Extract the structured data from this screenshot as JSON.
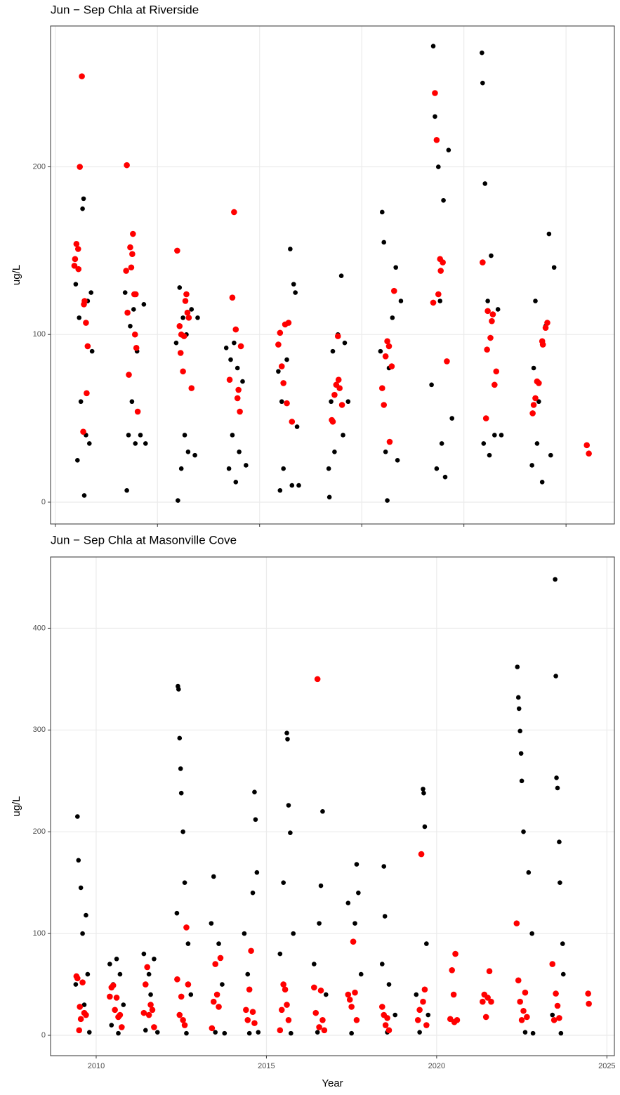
{
  "chart_data": [
    {
      "type": "scatter",
      "title": "Jun − Sep Chla at Riverside",
      "ylabel": "ug/L",
      "grid": true,
      "xlim": [
        2008.66,
        2025.22
      ],
      "ylim": [
        -13,
        284
      ],
      "xticks": [
        2008.8,
        2011.8,
        2014.8,
        2017.8,
        2020.8,
        2023.8
      ],
      "yticks": [
        0,
        100,
        200
      ],
      "series": [
        {
          "color": "#000000",
          "x": [
            2009.4,
            2009.45,
            2009.5,
            2009.55,
            2009.6,
            2009.63,
            2009.65,
            2009.7,
            2009.75,
            2009.8,
            2009.85,
            2009.88,
            2010.85,
            2010.9,
            2010.95,
            2011.0,
            2011.05,
            2011.1,
            2011.15,
            2011.2,
            2011.3,
            2011.4,
            2011.45,
            2012.35,
            2012.4,
            2012.45,
            2012.5,
            2012.55,
            2012.6,
            2012.65,
            2012.7,
            2012.8,
            2012.9,
            2012.98,
            2013.82,
            2013.9,
            2013.95,
            2014.0,
            2014.05,
            2014.1,
            2014.15,
            2014.2,
            2014.3,
            2014.4,
            2015.35,
            2015.4,
            2015.45,
            2015.5,
            2015.6,
            2015.7,
            2015.75,
            2015.8,
            2015.85,
            2015.9,
            2015.95,
            2016.83,
            2016.85,
            2016.9,
            2016.95,
            2017.0,
            2017.1,
            2017.2,
            2017.25,
            2017.3,
            2017.4,
            2018.35,
            2018.4,
            2018.45,
            2018.5,
            2018.55,
            2018.6,
            2018.7,
            2018.8,
            2018.85,
            2018.95,
            2019.85,
            2019.9,
            2019.95,
            2020.0,
            2020.05,
            2020.1,
            2020.15,
            2020.2,
            2020.25,
            2020.35,
            2020.45,
            2021.33,
            2021.35,
            2021.38,
            2021.42,
            2021.5,
            2021.55,
            2021.6,
            2021.7,
            2021.8,
            2021.9,
            2022.8,
            2022.85,
            2022.9,
            2022.95,
            2023.0,
            2023.1,
            2023.2,
            2023.3,
            2023.35,
            2023.45
          ],
          "values": [
            130,
            25,
            110,
            60,
            175,
            181,
            4,
            40,
            120,
            35,
            125,
            90,
            125,
            7,
            40,
            105,
            60,
            115,
            35,
            90,
            40,
            118,
            35,
            95,
            1,
            128,
            20,
            110,
            40,
            100,
            30,
            115,
            28,
            110,
            92,
            20,
            85,
            40,
            95,
            12,
            80,
            30,
            72,
            22,
            78,
            7,
            60,
            20,
            85,
            151,
            10,
            130,
            125,
            45,
            10,
            20,
            3,
            60,
            90,
            30,
            100,
            135,
            40,
            95,
            60,
            90,
            173,
            155,
            30,
            1,
            80,
            110,
            140,
            25,
            120,
            70,
            272,
            230,
            20,
            200,
            120,
            35,
            180,
            15,
            210,
            50,
            268,
            250,
            35,
            190,
            120,
            28,
            147,
            40,
            115,
            40,
            22,
            80,
            120,
            35,
            60,
            12,
            105,
            160,
            28,
            140
          ]
        },
        {
          "color": "#ff0000",
          "x": [
            2009.36,
            2009.38,
            2009.42,
            2009.47,
            2009.48,
            2009.52,
            2009.58,
            2009.62,
            2009.64,
            2009.66,
            2009.7,
            2009.72,
            2009.75,
            2010.88,
            2010.9,
            2010.92,
            2010.96,
            2011.0,
            2011.03,
            2011.06,
            2011.08,
            2011.12,
            2011.14,
            2011.16,
            2011.18,
            2011.22,
            2012.38,
            2012.45,
            2012.48,
            2012.5,
            2012.55,
            2012.58,
            2012.62,
            2012.65,
            2012.68,
            2012.72,
            2012.8,
            2013.92,
            2014.0,
            2014.05,
            2014.1,
            2014.15,
            2014.18,
            2014.22,
            2014.25,
            2015.35,
            2015.4,
            2015.45,
            2015.5,
            2015.55,
            2015.65,
            2015.6,
            2015.75,
            2016.92,
            2016.95,
            2017.0,
            2017.05,
            2017.1,
            2017.12,
            2017.15,
            2017.22,
            2018.4,
            2018.45,
            2018.5,
            2018.55,
            2018.6,
            2018.62,
            2018.68,
            2018.75,
            2019.9,
            2019.95,
            2020.0,
            2020.05,
            2020.1,
            2020.12,
            2020.18,
            2020.3,
            2021.35,
            2021.45,
            2021.48,
            2021.5,
            2021.58,
            2021.62,
            2021.65,
            2021.7,
            2021.75,
            2022.82,
            2022.85,
            2022.9,
            2022.95,
            2023.0,
            2023.1,
            2023.12,
            2023.2,
            2023.25,
            2024.41,
            2024.47
          ],
          "values": [
            141,
            145,
            154,
            151,
            139,
            200,
            254,
            42,
            118,
            120,
            107,
            65,
            93,
            138,
            201,
            113,
            76,
            152,
            140,
            148,
            160,
            124,
            100,
            124,
            92,
            54,
            150,
            105,
            89,
            100,
            78,
            99,
            120,
            124,
            113,
            110,
            68,
            73,
            122,
            173,
            103,
            62,
            67,
            54,
            93,
            94,
            101,
            81,
            71,
            106,
            107,
            59,
            48,
            49,
            48,
            64,
            70,
            99,
            73,
            68,
            58,
            68,
            58,
            87,
            96,
            93,
            36,
            81,
            126,
            119,
            244,
            216,
            124,
            145,
            138,
            143,
            84,
            143,
            50,
            91,
            114,
            98,
            108,
            112,
            70,
            78,
            53,
            58,
            62,
            72,
            71,
            96,
            94,
            104,
            107,
            34,
            29
          ]
        }
      ]
    },
    {
      "type": "scatter",
      "title": "Jun − Sep Chla at Masonville Cove",
      "xlabel": "Year",
      "ylabel": "ug/L",
      "grid": true,
      "xlim": [
        2008.66,
        2025.22
      ],
      "ylim": [
        -20,
        470
      ],
      "xticks": [
        2010,
        2015,
        2020,
        2025
      ],
      "yticks": [
        0,
        100,
        200,
        300,
        400
      ],
      "series": [
        {
          "color": "#000000",
          "x": [
            2009.4,
            2009.45,
            2009.48,
            2009.5,
            2009.55,
            2009.6,
            2009.65,
            2009.7,
            2009.75,
            2009.8,
            2010.4,
            2010.45,
            2010.5,
            2010.6,
            2010.65,
            2010.7,
            2010.8,
            2011.4,
            2011.45,
            2011.55,
            2011.6,
            2011.7,
            2011.8,
            2012.37,
            2012.4,
            2012.42,
            2012.45,
            2012.48,
            2012.5,
            2012.55,
            2012.6,
            2012.65,
            2012.7,
            2012.78,
            2013.38,
            2013.45,
            2013.5,
            2013.6,
            2013.7,
            2013.77,
            2014.35,
            2014.45,
            2014.5,
            2014.6,
            2014.65,
            2014.68,
            2014.72,
            2014.76,
            2015.4,
            2015.5,
            2015.6,
            2015.62,
            2015.65,
            2015.7,
            2015.72,
            2015.79,
            2016.4,
            2016.5,
            2016.55,
            2016.6,
            2016.65,
            2016.75,
            2017.4,
            2017.5,
            2017.6,
            2017.65,
            2017.7,
            2017.78,
            2018.4,
            2018.45,
            2018.48,
            2018.55,
            2018.6,
            2018.78,
            2019.4,
            2019.5,
            2019.6,
            2019.62,
            2019.65,
            2019.7,
            2019.75,
            2022.37,
            2022.4,
            2022.42,
            2022.45,
            2022.48,
            2022.5,
            2022.55,
            2022.6,
            2022.7,
            2022.8,
            2022.83,
            2023.4,
            2023.48,
            2023.5,
            2023.52,
            2023.55,
            2023.6,
            2023.62,
            2023.65,
            2023.7,
            2023.72
          ],
          "values": [
            50,
            215,
            172,
            5,
            145,
            100,
            30,
            118,
            60,
            3,
            70,
            10,
            50,
            75,
            2,
            60,
            30,
            80,
            5,
            60,
            40,
            75,
            3,
            120,
            343,
            340,
            292,
            262,
            238,
            200,
            150,
            2,
            90,
            40,
            110,
            156,
            3,
            90,
            50,
            2,
            100,
            60,
            2,
            140,
            239,
            212,
            160,
            3,
            80,
            150,
            297,
            291,
            226,
            199,
            2,
            100,
            70,
            3,
            110,
            147,
            220,
            40,
            130,
            2,
            110,
            168,
            140,
            60,
            70,
            166,
            117,
            3,
            50,
            20,
            40,
            3,
            242,
            238,
            205,
            90,
            20,
            362,
            332,
            321,
            299,
            277,
            250,
            200,
            3,
            160,
            100,
            2,
            20,
            448,
            353,
            253,
            243,
            190,
            150,
            2,
            90,
            60
          ]
        },
        {
          "color": "#ff0000",
          "x": [
            2009.42,
            2009.45,
            2009.5,
            2009.52,
            2009.55,
            2009.6,
            2009.65,
            2009.7,
            2010.4,
            2010.45,
            2010.5,
            2010.55,
            2010.6,
            2010.65,
            2010.7,
            2010.75,
            2011.4,
            2011.45,
            2011.5,
            2011.55,
            2011.6,
            2011.65,
            2011.7,
            2012.38,
            2012.45,
            2012.5,
            2012.55,
            2012.6,
            2012.65,
            2012.7,
            2013.4,
            2013.45,
            2013.5,
            2013.55,
            2013.6,
            2013.65,
            2014.4,
            2014.45,
            2014.5,
            2014.55,
            2014.6,
            2014.65,
            2015.4,
            2015.45,
            2015.5,
            2015.55,
            2015.6,
            2015.65,
            2016.4,
            2016.45,
            2016.5,
            2016.55,
            2016.6,
            2016.65,
            2016.7,
            2017.4,
            2017.45,
            2017.5,
            2017.55,
            2017.6,
            2017.65,
            2018.4,
            2018.45,
            2018.5,
            2018.55,
            2018.6,
            2019.45,
            2019.5,
            2019.55,
            2019.6,
            2019.65,
            2019.7,
            2020.4,
            2020.45,
            2020.5,
            2020.55,
            2020.52,
            2020.6,
            2021.35,
            2021.4,
            2021.45,
            2021.5,
            2021.55,
            2021.6,
            2022.35,
            2022.4,
            2022.45,
            2022.5,
            2022.55,
            2022.6,
            2022.65,
            2023.4,
            2023.45,
            2023.5,
            2023.55,
            2023.6,
            2024.45,
            2024.47
          ],
          "values": [
            58,
            56,
            5,
            28,
            16,
            52,
            22,
            20,
            38,
            47,
            49,
            25,
            37,
            18,
            20,
            8,
            22,
            50,
            67,
            20,
            30,
            25,
            8,
            55,
            20,
            38,
            15,
            10,
            106,
            50,
            7,
            33,
            70,
            40,
            28,
            76,
            25,
            15,
            45,
            83,
            23,
            12,
            5,
            25,
            50,
            45,
            30,
            15,
            47,
            22,
            350,
            8,
            44,
            15,
            5,
            40,
            35,
            28,
            92,
            42,
            15,
            28,
            20,
            10,
            17,
            5,
            15,
            25,
            178,
            33,
            45,
            10,
            16,
            64,
            40,
            80,
            13,
            15,
            33,
            40,
            18,
            37,
            63,
            33,
            110,
            54,
            33,
            15,
            24,
            42,
            18,
            70,
            15,
            41,
            29,
            17,
            41,
            31
          ]
        }
      ]
    }
  ]
}
